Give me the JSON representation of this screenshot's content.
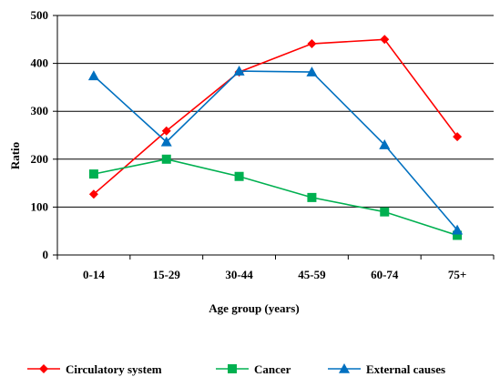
{
  "chart_data": {
    "type": "line",
    "xlabel": "Age group (years)",
    "ylabel": "Ratio",
    "categories": [
      "0-14",
      "15-29",
      "30-44",
      "45-59",
      "60-74",
      "75+"
    ],
    "ylim": [
      0,
      500
    ],
    "yticks": [
      0,
      100,
      200,
      300,
      400,
      500
    ],
    "grid": "horizontal",
    "legend_position": "bottom",
    "series": [
      {
        "name": "Circulatory system",
        "color": "#ff0000",
        "marker": "diamond",
        "values": [
          127,
          259,
          382,
          441,
          450,
          247
        ]
      },
      {
        "name": "Cancer",
        "color": "#00b050",
        "marker": "square",
        "values": [
          169,
          200,
          164,
          120,
          90,
          41
        ]
      },
      {
        "name": "External causes",
        "color": "#0070c0",
        "marker": "triangle",
        "values": [
          374,
          236,
          384,
          382,
          230,
          52
        ]
      }
    ]
  }
}
